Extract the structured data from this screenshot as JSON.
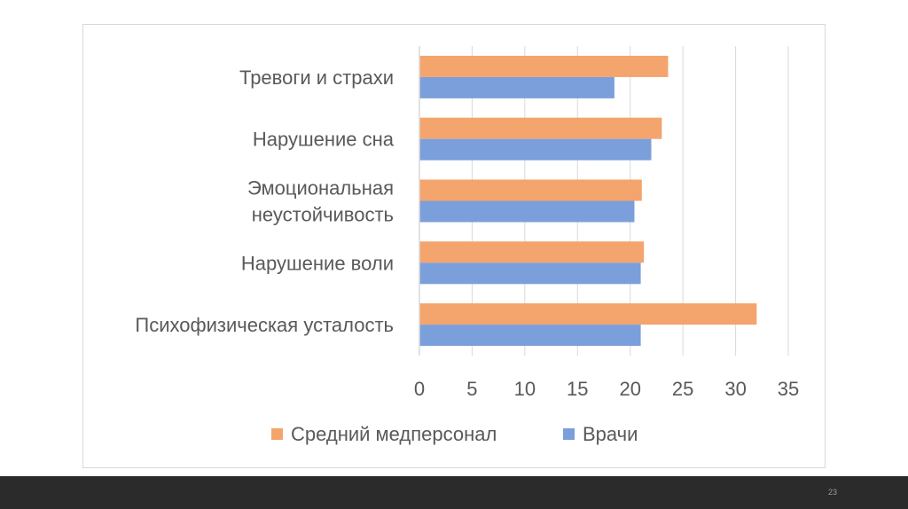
{
  "chart_data": {
    "type": "bar",
    "orientation": "horizontal",
    "title": "",
    "xlabel": "",
    "ylabel": "",
    "categories": [
      [
        "Тревоги  и страхи"
      ],
      [
        "Нарушение  сна"
      ],
      [
        "Эмоциональная",
        "неустойчивость"
      ],
      [
        "Нарушение  воли"
      ],
      [
        "Психофизическая усталость"
      ]
    ],
    "series": [
      {
        "name": "Средний медперсонал",
        "color": "#f4a46d",
        "values": [
          23.6,
          23.0,
          21.1,
          21.3,
          32.0
        ]
      },
      {
        "name": "Врачи",
        "color": "#7b9fdb",
        "values": [
          18.5,
          22.0,
          20.4,
          21.0,
          21.0
        ]
      }
    ],
    "xlim": [
      0,
      35
    ],
    "x_ticks": [
      0,
      5,
      10,
      15,
      20,
      25,
      30,
      35
    ],
    "grid": true,
    "legend_position": "bottom"
  },
  "slide": {
    "number": "23"
  }
}
